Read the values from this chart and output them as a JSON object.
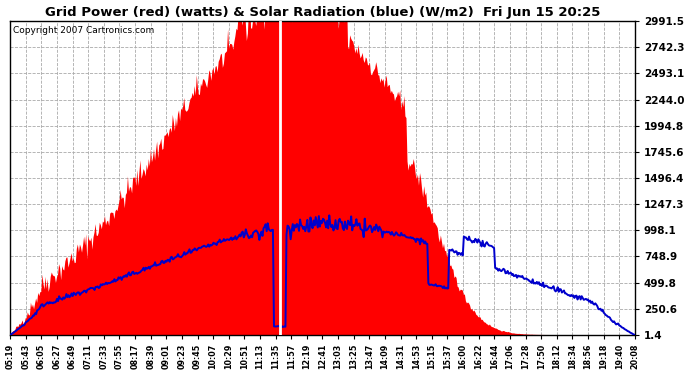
{
  "title": "Grid Power (red) (watts) & Solar Radiation (blue) (W/m2)  Fri Jun 15 20:25",
  "copyright": "Copyright 2007 Cartronics.com",
  "bg_color": "#ffffff",
  "plot_bg_color": "#ffffff",
  "grid_color": "#aaaaaa",
  "yticks": [
    1.4,
    250.6,
    499.8,
    748.9,
    998.1,
    1247.3,
    1496.4,
    1745.6,
    1994.8,
    2244.0,
    2493.1,
    2742.3,
    2991.5
  ],
  "ymin": 1.4,
  "ymax": 2991.5,
  "x_labels": [
    "05:19",
    "05:43",
    "06:05",
    "06:27",
    "06:49",
    "07:11",
    "07:33",
    "07:55",
    "08:17",
    "08:39",
    "09:01",
    "09:23",
    "09:45",
    "10:07",
    "10:29",
    "10:51",
    "11:13",
    "11:35",
    "11:57",
    "12:19",
    "12:41",
    "13:03",
    "13:25",
    "13:47",
    "14:09",
    "14:31",
    "14:53",
    "15:15",
    "15:37",
    "16:00",
    "16:22",
    "16:44",
    "17:06",
    "17:28",
    "17:50",
    "18:12",
    "18:34",
    "18:56",
    "19:18",
    "19:40",
    "20:08"
  ],
  "red_fill_color": "#ff0000",
  "blue_line_color": "#0000cc",
  "white_line_color": "#ffffff"
}
